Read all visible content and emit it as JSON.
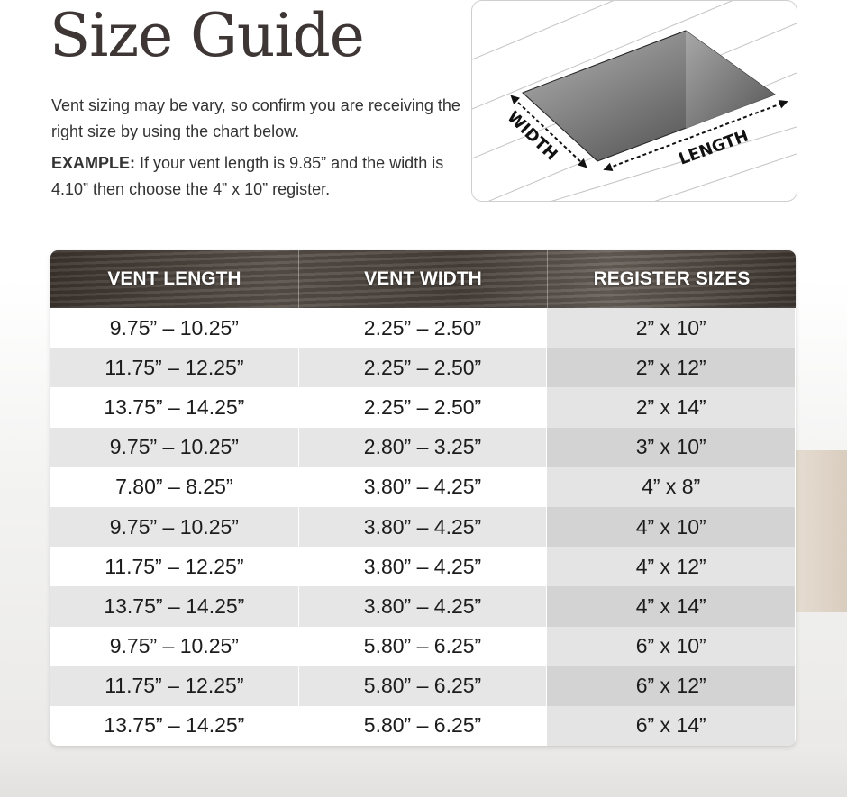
{
  "title": "Size Guide",
  "description": "Vent sizing may be vary, so confirm you are receiving the right size by using the chart below.",
  "example_label": "EXAMPLE:",
  "example_text": " If your vent length is 9.85” and the width is 4.10” then choose the 4” x 10” register.",
  "diagram": {
    "width_label": "WIDTH",
    "length_label": "LENGTH"
  },
  "table": {
    "headers": [
      "VENT LENGTH",
      "VENT WIDTH",
      "REGISTER SIZES"
    ],
    "rows": [
      [
        "9.75” – 10.25”",
        "2.25” – 2.50”",
        "2” x 10”"
      ],
      [
        "11.75” – 12.25”",
        "2.25” – 2.50”",
        "2” x 12”"
      ],
      [
        "13.75” – 14.25”",
        "2.25” – 2.50”",
        "2” x 14”"
      ],
      [
        "9.75” – 10.25”",
        "2.80” – 3.25”",
        "3” x 10”"
      ],
      [
        "7.80” – 8.25”",
        "3.80” – 4.25”",
        "4” x 8”"
      ],
      [
        "9.75” – 10.25”",
        "3.80” – 4.25”",
        "4” x 10”"
      ],
      [
        "11.75” – 12.25”",
        "3.80” – 4.25”",
        "4” x 12”"
      ],
      [
        "13.75” – 14.25”",
        "3.80” – 4.25”",
        "4” x 14”"
      ],
      [
        "9.75” – 10.25”",
        "5.80” – 6.25”",
        "6” x 10”"
      ],
      [
        "11.75” – 12.25”",
        "5.80” – 6.25”",
        "6” x 12”"
      ],
      [
        "13.75” – 14.25”",
        "5.80” – 6.25”",
        "6” x 14”"
      ]
    ]
  }
}
